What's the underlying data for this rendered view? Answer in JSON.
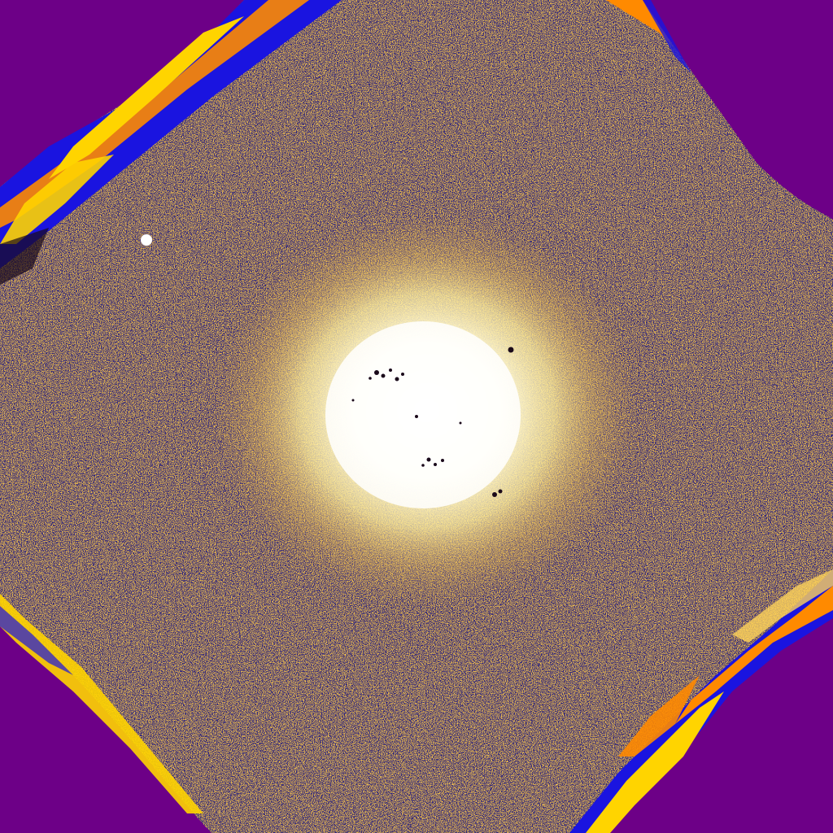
{
  "image": {
    "kind": "false-color astronomical field",
    "colors": {
      "background": "#6d0087",
      "noise_dark": "#1a1a7a",
      "noise_mid": "#3a2a9a",
      "noise_light": "#d8a84a",
      "noise_bright": "#ffe066",
      "core_white": "#ffffff",
      "core_yellow": "#fff4b0",
      "edge_blue": "#1a14e0",
      "edge_orange": "#ff8a00",
      "edge_yellow": "#ffd400",
      "dark_speck": "#1a0a1a"
    }
  }
}
